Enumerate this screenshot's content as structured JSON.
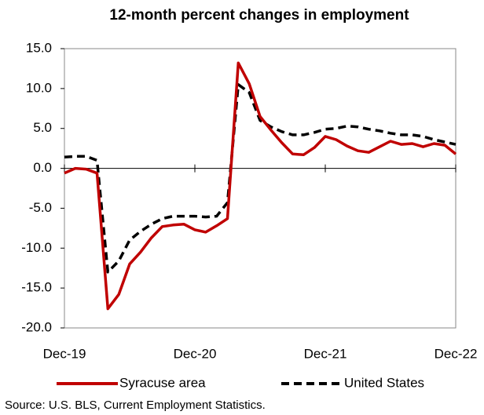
{
  "chart_data": {
    "type": "line",
    "title": "12-month percent changes in employment",
    "source": "Source: U.S. BLS, Current Employment Statistics.",
    "categories": [
      "Dec-19",
      null,
      null,
      null,
      null,
      null,
      null,
      null,
      null,
      null,
      null,
      null,
      "Dec-20",
      null,
      null,
      null,
      null,
      null,
      null,
      null,
      null,
      null,
      null,
      null,
      "Dec-21",
      null,
      null,
      null,
      null,
      null,
      null,
      null,
      null,
      null,
      null,
      null,
      "Dec-22"
    ],
    "series": [
      {
        "name": "Syracuse area",
        "color": "#c00000",
        "dash": "solid",
        "values": [
          -0.6,
          0.0,
          -0.1,
          -0.6,
          -17.6,
          -15.8,
          -12.0,
          -10.5,
          -8.7,
          -7.3,
          -7.1,
          -7.0,
          -7.7,
          -8.0,
          -7.2,
          -6.3,
          13.2,
          10.6,
          6.5,
          4.8,
          3.2,
          1.8,
          1.7,
          2.6,
          4.0,
          3.6,
          2.8,
          2.2,
          2.0,
          2.7,
          3.4,
          3.0,
          3.1,
          2.7,
          3.1,
          2.9,
          1.8
        ]
      },
      {
        "name": "United States",
        "color": "#000000",
        "dash": "dashed",
        "values": [
          1.4,
          1.5,
          1.5,
          1.0,
          -13.0,
          -11.6,
          -9.0,
          -7.9,
          -7.0,
          -6.3,
          -6.0,
          -6.0,
          -6.0,
          -6.1,
          -6.0,
          -4.3,
          10.5,
          9.5,
          6.0,
          5.2,
          4.6,
          4.2,
          4.2,
          4.5,
          4.9,
          5.0,
          5.3,
          5.2,
          4.9,
          4.7,
          4.4,
          4.2,
          4.2,
          4.0,
          3.6,
          3.3,
          3.0
        ]
      }
    ],
    "ylim": [
      -20,
      15
    ],
    "yticks": [
      {
        "value": -20,
        "label": "-20.0"
      },
      {
        "value": -15,
        "label": "-15.0"
      },
      {
        "value": -10,
        "label": "-10.0"
      },
      {
        "value": -5,
        "label": "-5.0"
      },
      {
        "value": 0,
        "label": "0.0"
      },
      {
        "value": 5,
        "label": "5.0"
      },
      {
        "value": 10,
        "label": "10.0"
      },
      {
        "value": 15,
        "label": "15.0"
      }
    ],
    "grid": false,
    "legend": "bottom"
  }
}
